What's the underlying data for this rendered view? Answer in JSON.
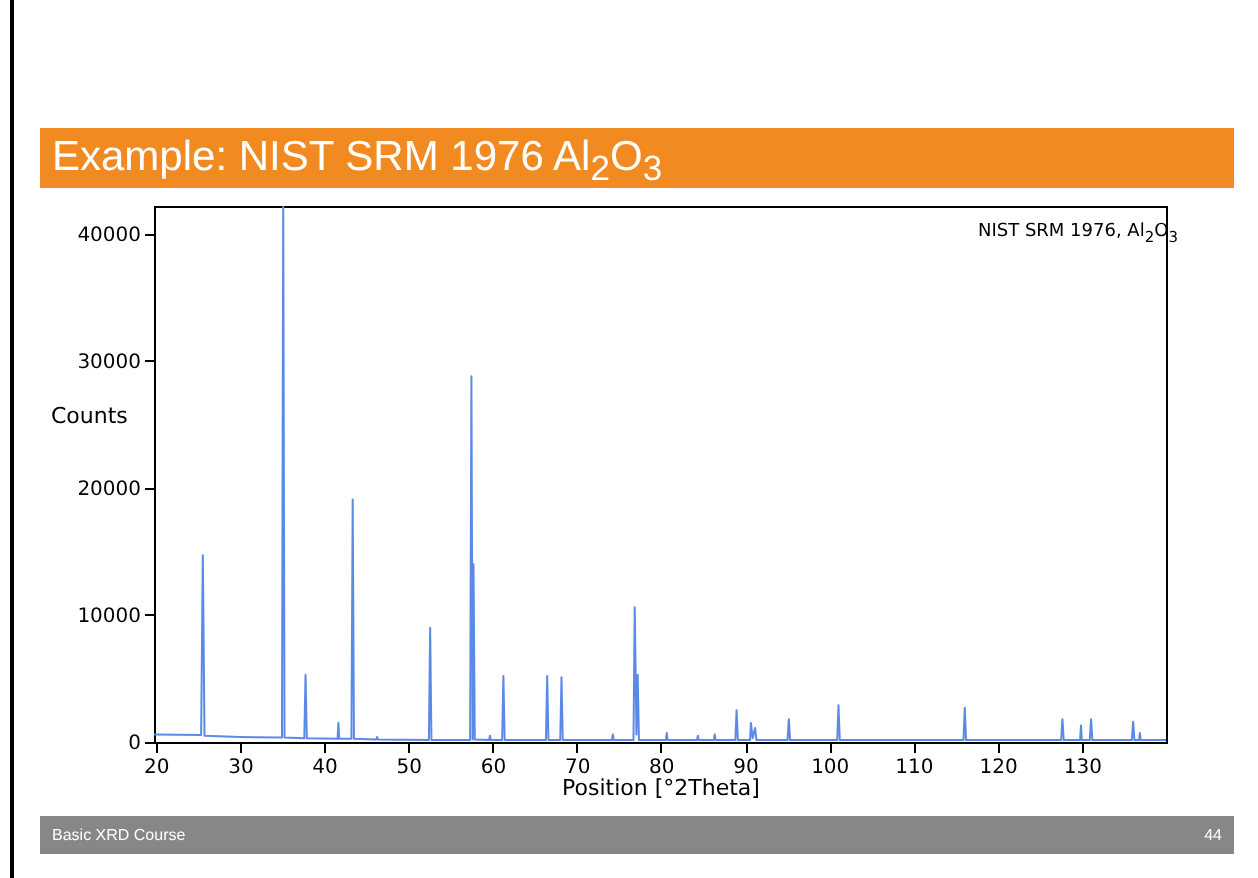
{
  "chart_data": {
    "type": "line",
    "title": "Example: NIST SRM 1976 Al$_{2}$O$_{3}$",
    "xlabel": "Position [°2Theta]",
    "ylabel": "Counts",
    "annotations": [
      "NIST SRM 1976, Al$_{2}$O$_{3}$",
      "Basic XRD Course",
      "44"
    ],
    "series": [
      {
        "color": "#5b8ae6",
        "x": [
          19.8,
          25.4,
          25.6,
          25.8,
          30,
          35.0,
          35.15,
          35.3,
          37.65,
          37.8,
          37.95,
          41.6,
          41.7,
          41.8,
          43.25,
          43.4,
          43.55,
          46.2,
          46.3,
          46.4,
          52.45,
          52.6,
          52.75,
          57.35,
          57.5,
          57.65,
          57.75,
          57.9,
          59.6,
          59.7,
          59.8,
          61.15,
          61.3,
          61.45,
          66.35,
          66.5,
          66.65,
          68.05,
          68.2,
          68.35,
          74.2,
          74.3,
          74.4,
          76.75,
          76.9,
          77.1,
          77.25,
          77.4,
          80.6,
          80.7,
          80.8,
          84.3,
          84.4,
          84.5,
          86.3,
          86.4,
          86.5,
          88.85,
          89.0,
          89.15,
          90.6,
          90.7,
          90.9,
          91.2,
          91.35,
          95.05,
          95.2,
          95.35,
          100.95,
          101.1,
          101.25,
          115.95,
          116.1,
          116.25,
          127.55,
          127.7,
          127.85,
          129.8,
          129.9,
          130.0,
          130.95,
          131.1,
          131.25,
          135.95,
          136.1,
          136.25,
          136.8,
          136.9,
          137.0,
          140
        ],
        "values": [
          600,
          550,
          14700,
          500,
          400,
          350,
          42200,
          350,
          300,
          5300,
          300,
          250,
          1500,
          250,
          250,
          19100,
          250,
          200,
          400,
          200,
          150,
          9000,
          150,
          150,
          28800,
          200,
          14000,
          200,
          150,
          500,
          150,
          150,
          5200,
          150,
          150,
          5200,
          150,
          150,
          5100,
          150,
          150,
          600,
          150,
          150,
          10600,
          600,
          5300,
          150,
          150,
          700,
          150,
          150,
          500,
          150,
          150,
          600,
          150,
          150,
          2500,
          150,
          150,
          1500,
          300,
          1100,
          150,
          150,
          1800,
          150,
          150,
          2900,
          150,
          150,
          2700,
          150,
          150,
          1800,
          150,
          150,
          1300,
          150,
          150,
          1800,
          150,
          150,
          1600,
          150,
          150,
          700,
          150,
          150
        ]
      }
    ],
    "xlim": [
      19.8,
      140
    ],
    "ylim": [
      0,
      42200
    ],
    "xticks": [
      20,
      30,
      40,
      50,
      60,
      70,
      80,
      90,
      100,
      110,
      120,
      130
    ],
    "yticks": [
      0,
      10000,
      20000,
      30000,
      40000
    ]
  }
}
